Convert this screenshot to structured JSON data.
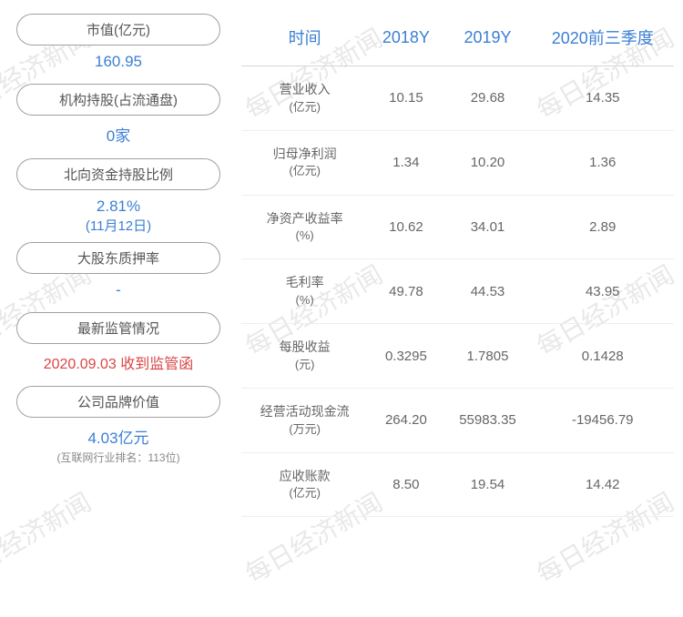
{
  "watermark_text": "每日经济新闻",
  "sidebar": {
    "items": [
      {
        "label": "市值(亿元)",
        "value": "160.95",
        "value_color": "#3b7fd4"
      },
      {
        "label": "机构持股(占流通盘)",
        "value": "0家",
        "value_color": "#3b7fd4"
      },
      {
        "label": "北向资金持股比例",
        "value": "2.81%",
        "value_sub": "(11月12日)",
        "value_color": "#3b7fd4"
      },
      {
        "label": "大股东质押率",
        "value": "-",
        "value_color": "#3b7fd4"
      },
      {
        "label": "最新监管情况",
        "value": "2020.09.03 收到监管函",
        "value_color": "#d94545"
      },
      {
        "label": "公司品牌价值",
        "value": "4.03亿元",
        "value_sub_gray": "(互联网行业排名：113位)",
        "value_color": "#3b7fd4"
      }
    ]
  },
  "table": {
    "headers": [
      "时间",
      "2018Y",
      "2019Y",
      "2020前三季度"
    ],
    "rows": [
      {
        "metric": "营业收入",
        "unit": "(亿元)",
        "v1": "10.15",
        "v2": "29.68",
        "v3": "14.35"
      },
      {
        "metric": "归母净利润",
        "unit": "(亿元)",
        "v1": "1.34",
        "v2": "10.20",
        "v3": "1.36"
      },
      {
        "metric": "净资产收益率",
        "unit": "(%)",
        "v1": "10.62",
        "v2": "34.01",
        "v3": "2.89"
      },
      {
        "metric": "毛利率",
        "unit": "(%)",
        "v1": "49.78",
        "v2": "44.53",
        "v3": "43.95"
      },
      {
        "metric": "每股收益",
        "unit": "(元)",
        "v1": "0.3295",
        "v2": "1.7805",
        "v3": "0.1428"
      },
      {
        "metric": "经营活动现金流",
        "unit": "(万元)",
        "v1": "264.20",
        "v2": "55983.35",
        "v3": "-19456.79"
      },
      {
        "metric": "应收账款",
        "unit": "(亿元)",
        "v1": "8.50",
        "v2": "19.54",
        "v3": "14.42"
      }
    ]
  },
  "colors": {
    "header_text": "#3b7fd4",
    "body_text": "#666666",
    "pill_border": "#a0a0a0",
    "red_text": "#d94545",
    "border": "#d5d5d5",
    "row_border": "#eeeeee",
    "background": "#ffffff",
    "watermark": "#e8e8e8"
  }
}
